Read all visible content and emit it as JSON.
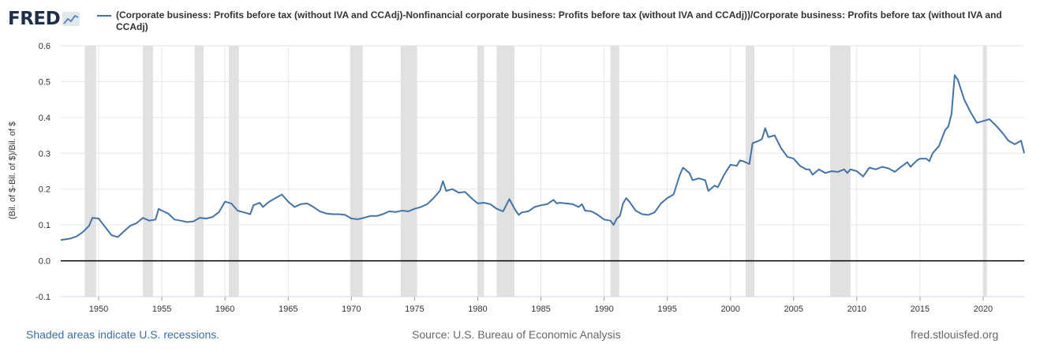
{
  "header": {
    "logo_text": "FRED",
    "logo_icon": "line-chart-icon",
    "series_title": "(Corporate business: Profits before tax (without IVA and CCAdj)-Nonfinancial corporate business: Profits before tax (without IVA and CCAdj))/Corporate business: Profits before tax (without IVA and CCAdj)"
  },
  "footer": {
    "recession_note": "Shaded areas indicate U.S. recessions.",
    "source": "Source: U.S. Bureau of Economic Analysis",
    "site": "fred.stlouisfed.org"
  },
  "colors": {
    "series": "#4572a7",
    "recession": "#e1e1e1",
    "zero_line": "#000000"
  },
  "chart_data": {
    "type": "line",
    "title": "(Corporate business: Profits before tax (without IVA and CCAdj)-Nonfinancial corporate business: Profits before tax (without IVA and CCAdj))/Corporate business: Profits before tax (without IVA and CCAdj)",
    "ylabel": "(Bil. of $-Bil. of $)/Bil. of $",
    "xlabel": "",
    "xlim": [
      1947,
      2023.25
    ],
    "ylim": [
      -0.1,
      0.6
    ],
    "yticks": [
      "-0.1",
      "0.0",
      "0.1",
      "0.2",
      "0.3",
      "0.4",
      "0.5",
      "0.6"
    ],
    "yticks_values": [
      -0.1,
      0.0,
      0.1,
      0.2,
      0.3,
      0.4,
      0.5,
      0.6
    ],
    "xticks": [
      "1950",
      "1955",
      "1960",
      "1965",
      "1970",
      "1975",
      "1980",
      "1985",
      "1990",
      "1995",
      "2000",
      "2005",
      "2010",
      "2015",
      "2020"
    ],
    "xticks_values": [
      1950,
      1955,
      1960,
      1965,
      1970,
      1975,
      1980,
      1985,
      1990,
      1995,
      2000,
      2005,
      2010,
      2015,
      2020
    ],
    "grid": true,
    "legend": "top",
    "recessions": [
      [
        1948.9,
        1949.8
      ],
      [
        1953.5,
        1954.3
      ],
      [
        1957.6,
        1958.3
      ],
      [
        1960.3,
        1961.1
      ],
      [
        1969.9,
        1970.9
      ],
      [
        1973.9,
        1975.2
      ],
      [
        1980.0,
        1980.5
      ],
      [
        1981.5,
        1982.9
      ],
      [
        1990.5,
        1991.2
      ],
      [
        2001.2,
        2001.9
      ],
      [
        2007.9,
        2009.5
      ],
      [
        2020.0,
        2020.3
      ]
    ],
    "series": [
      {
        "name": "(Corporate business: Profits before tax (without IVA and CCAdj)-Nonfinancial corporate business: Profits before tax (without IVA and CCAdj))/Corporate business: Profits before tax (without IVA and CCAdj)",
        "points": [
          [
            1947.0,
            0.058
          ],
          [
            1947.75,
            0.062
          ],
          [
            1948.25,
            0.068
          ],
          [
            1948.75,
            0.08
          ],
          [
            1949.25,
            0.098
          ],
          [
            1949.5,
            0.12
          ],
          [
            1950.0,
            0.118
          ],
          [
            1950.5,
            0.095
          ],
          [
            1951.0,
            0.072
          ],
          [
            1951.5,
            0.066
          ],
          [
            1952.0,
            0.082
          ],
          [
            1952.5,
            0.098
          ],
          [
            1953.0,
            0.105
          ],
          [
            1953.5,
            0.12
          ],
          [
            1954.0,
            0.112
          ],
          [
            1954.5,
            0.115
          ],
          [
            1954.75,
            0.145
          ],
          [
            1955.0,
            0.14
          ],
          [
            1955.5,
            0.132
          ],
          [
            1956.0,
            0.115
          ],
          [
            1956.5,
            0.112
          ],
          [
            1957.0,
            0.108
          ],
          [
            1957.5,
            0.11
          ],
          [
            1958.0,
            0.12
          ],
          [
            1958.5,
            0.118
          ],
          [
            1959.0,
            0.122
          ],
          [
            1959.5,
            0.135
          ],
          [
            1960.0,
            0.165
          ],
          [
            1960.5,
            0.16
          ],
          [
            1961.0,
            0.14
          ],
          [
            1961.5,
            0.135
          ],
          [
            1962.0,
            0.13
          ],
          [
            1962.25,
            0.155
          ],
          [
            1962.75,
            0.162
          ],
          [
            1963.0,
            0.15
          ],
          [
            1963.5,
            0.165
          ],
          [
            1964.0,
            0.175
          ],
          [
            1964.5,
            0.185
          ],
          [
            1965.0,
            0.165
          ],
          [
            1965.5,
            0.15
          ],
          [
            1966.0,
            0.158
          ],
          [
            1966.5,
            0.16
          ],
          [
            1967.0,
            0.15
          ],
          [
            1967.5,
            0.138
          ],
          [
            1968.0,
            0.132
          ],
          [
            1968.5,
            0.13
          ],
          [
            1969.0,
            0.13
          ],
          [
            1969.5,
            0.128
          ],
          [
            1970.0,
            0.118
          ],
          [
            1970.5,
            0.116
          ],
          [
            1971.0,
            0.12
          ],
          [
            1971.5,
            0.125
          ],
          [
            1972.0,
            0.125
          ],
          [
            1972.5,
            0.13
          ],
          [
            1973.0,
            0.138
          ],
          [
            1973.5,
            0.136
          ],
          [
            1974.0,
            0.14
          ],
          [
            1974.5,
            0.138
          ],
          [
            1975.0,
            0.145
          ],
          [
            1975.5,
            0.15
          ],
          [
            1976.0,
            0.158
          ],
          [
            1976.5,
            0.175
          ],
          [
            1977.0,
            0.195
          ],
          [
            1977.25,
            0.222
          ],
          [
            1977.5,
            0.195
          ],
          [
            1978.0,
            0.2
          ],
          [
            1978.5,
            0.19
          ],
          [
            1979.0,
            0.192
          ],
          [
            1979.5,
            0.175
          ],
          [
            1980.0,
            0.16
          ],
          [
            1980.5,
            0.162
          ],
          [
            1981.0,
            0.158
          ],
          [
            1981.5,
            0.145
          ],
          [
            1982.0,
            0.138
          ],
          [
            1982.5,
            0.172
          ],
          [
            1983.0,
            0.14
          ],
          [
            1983.25,
            0.128
          ],
          [
            1983.5,
            0.135
          ],
          [
            1984.0,
            0.138
          ],
          [
            1984.5,
            0.15
          ],
          [
            1985.0,
            0.155
          ],
          [
            1985.5,
            0.158
          ],
          [
            1986.0,
            0.17
          ],
          [
            1986.25,
            0.16
          ],
          [
            1986.5,
            0.162
          ],
          [
            1987.0,
            0.16
          ],
          [
            1987.5,
            0.158
          ],
          [
            1988.0,
            0.15
          ],
          [
            1988.25,
            0.158
          ],
          [
            1988.5,
            0.14
          ],
          [
            1989.0,
            0.138
          ],
          [
            1989.5,
            0.128
          ],
          [
            1990.0,
            0.115
          ],
          [
            1990.5,
            0.112
          ],
          [
            1990.75,
            0.1
          ],
          [
            1991.0,
            0.118
          ],
          [
            1991.25,
            0.125
          ],
          [
            1991.5,
            0.16
          ],
          [
            1991.75,
            0.175
          ],
          [
            1992.0,
            0.165
          ],
          [
            1992.5,
            0.14
          ],
          [
            1993.0,
            0.13
          ],
          [
            1993.5,
            0.128
          ],
          [
            1994.0,
            0.135
          ],
          [
            1994.5,
            0.16
          ],
          [
            1995.0,
            0.175
          ],
          [
            1995.5,
            0.185
          ],
          [
            1996.0,
            0.24
          ],
          [
            1996.25,
            0.26
          ],
          [
            1996.75,
            0.245
          ],
          [
            1997.0,
            0.225
          ],
          [
            1997.5,
            0.23
          ],
          [
            1998.0,
            0.225
          ],
          [
            1998.25,
            0.195
          ],
          [
            1998.75,
            0.21
          ],
          [
            1999.0,
            0.205
          ],
          [
            1999.5,
            0.24
          ],
          [
            2000.0,
            0.268
          ],
          [
            2000.5,
            0.265
          ],
          [
            2000.75,
            0.28
          ],
          [
            2001.0,
            0.278
          ],
          [
            2001.5,
            0.27
          ],
          [
            2001.75,
            0.328
          ],
          [
            2002.25,
            0.335
          ],
          [
            2002.5,
            0.34
          ],
          [
            2002.75,
            0.37
          ],
          [
            2003.0,
            0.345
          ],
          [
            2003.5,
            0.35
          ],
          [
            2004.0,
            0.315
          ],
          [
            2004.5,
            0.29
          ],
          [
            2005.0,
            0.285
          ],
          [
            2005.5,
            0.265
          ],
          [
            2006.0,
            0.255
          ],
          [
            2006.25,
            0.255
          ],
          [
            2006.5,
            0.24
          ],
          [
            2007.0,
            0.255
          ],
          [
            2007.5,
            0.245
          ],
          [
            2008.0,
            0.25
          ],
          [
            2008.5,
            0.248
          ],
          [
            2009.0,
            0.255
          ],
          [
            2009.25,
            0.245
          ],
          [
            2009.5,
            0.255
          ],
          [
            2010.0,
            0.25
          ],
          [
            2010.5,
            0.235
          ],
          [
            2011.0,
            0.26
          ],
          [
            2011.5,
            0.255
          ],
          [
            2012.0,
            0.262
          ],
          [
            2012.5,
            0.258
          ],
          [
            2013.0,
            0.248
          ],
          [
            2013.5,
            0.262
          ],
          [
            2014.0,
            0.275
          ],
          [
            2014.25,
            0.262
          ],
          [
            2014.75,
            0.28
          ],
          [
            2015.0,
            0.285
          ],
          [
            2015.5,
            0.285
          ],
          [
            2015.75,
            0.278
          ],
          [
            2016.0,
            0.3
          ],
          [
            2016.5,
            0.32
          ],
          [
            2017.0,
            0.365
          ],
          [
            2017.25,
            0.375
          ],
          [
            2017.5,
            0.41
          ],
          [
            2017.75,
            0.518
          ],
          [
            2018.0,
            0.505
          ],
          [
            2018.5,
            0.45
          ],
          [
            2019.0,
            0.415
          ],
          [
            2019.5,
            0.385
          ],
          [
            2020.0,
            0.39
          ],
          [
            2020.5,
            0.395
          ],
          [
            2021.0,
            0.378
          ],
          [
            2021.5,
            0.358
          ],
          [
            2022.0,
            0.335
          ],
          [
            2022.5,
            0.325
          ],
          [
            2023.0,
            0.335
          ],
          [
            2023.25,
            0.3
          ]
        ]
      }
    ]
  }
}
